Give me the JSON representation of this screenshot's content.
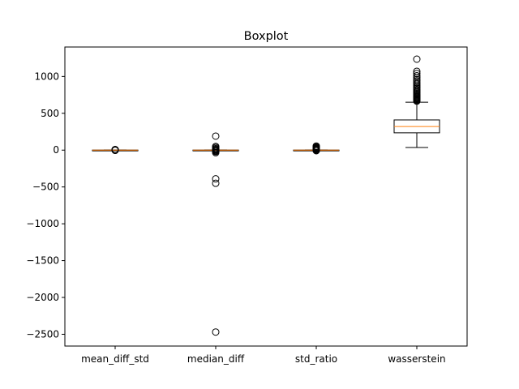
{
  "chart_data": {
    "type": "boxplot",
    "title": "Boxplot",
    "xlabel": "",
    "ylabel": "",
    "ylim": [
      -2660,
      1400
    ],
    "yticks": [
      1000,
      500,
      0,
      -500,
      -1000,
      -1500,
      -2000,
      -2500
    ],
    "ytick_labels": [
      "1000",
      "500",
      "0",
      "−500",
      "−1000",
      "−1500",
      "−2000",
      "−2500"
    ],
    "grid": false,
    "box_color": "#000000",
    "median_color": "#ff7f0e",
    "categories": [
      "mean_diff_std",
      "median_diff",
      "std_ratio",
      "wasserstein"
    ],
    "boxes": [
      {
        "label": "mean_diff_std",
        "whisker_low": -2,
        "q1": -1,
        "median": 0,
        "q3": 1,
        "whisker_high": 2,
        "outliers": [
          -3,
          -1,
          2,
          4,
          6,
          8
        ]
      },
      {
        "label": "median_diff",
        "whisker_low": -3,
        "q1": -1,
        "median": 0,
        "q3": 1,
        "whisker_high": 3,
        "outliers": [
          190,
          50,
          35,
          20,
          10,
          5,
          -5,
          -10,
          -20,
          -35,
          -390,
          -450,
          -2470
        ]
      },
      {
        "label": "std_ratio",
        "whisker_low": -3,
        "q1": -1,
        "median": 0,
        "q3": 1,
        "whisker_high": 3,
        "outliers": [
          55,
          45,
          35,
          28,
          20,
          12,
          6,
          -4,
          -8
        ]
      },
      {
        "label": "wasserstein",
        "whisker_low": 35,
        "q1": 235,
        "median": 320,
        "q3": 410,
        "whisker_high": 650,
        "outliers": [
          1235,
          1070,
          1040,
          1010,
          985,
          960,
          940,
          915,
          895,
          875,
          855,
          840,
          820,
          805,
          790,
          775,
          760,
          745,
          735,
          725,
          715,
          705,
          695,
          685,
          675,
          665
        ]
      }
    ]
  }
}
